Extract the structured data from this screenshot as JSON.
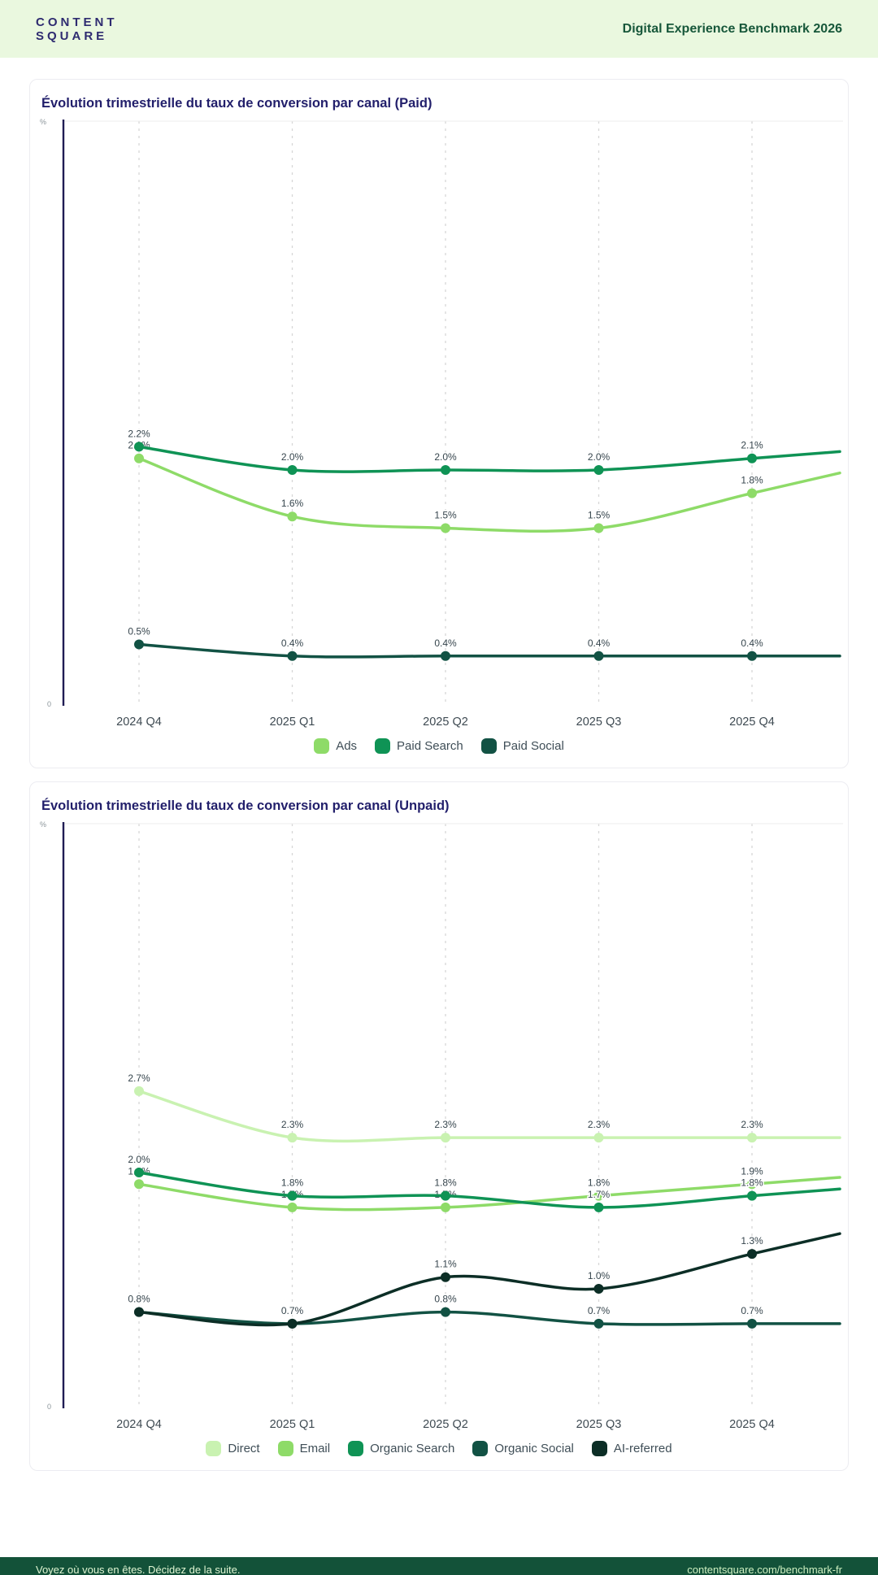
{
  "header": {
    "logo_line1": "CONTENT",
    "logo_line2": "SQUARE",
    "title": "Digital Experience Benchmark 2026"
  },
  "footer": {
    "left": "Voyez où vous en êtes. Décidez de la suite.",
    "right": "contentsquare.com/benchmark-fr"
  },
  "colors": {
    "header_bg": "#EAF8DF",
    "header_title": "#17573A",
    "logo_navy": "#2E2B70",
    "chart_title_navy": "#221F6B",
    "axis_navy": "#201C54",
    "gridline": "#D7D7D7",
    "tick_label": "#3E4A52",
    "data_label": "#36454D",
    "footer_bg": "#135239",
    "footer_text": "#DFF5D2",
    "bottom_strip_navy": "#221F6B"
  },
  "chart_data": [
    {
      "type": "line",
      "title": "Évolution trimestrielle du taux de conversion par canal (Paid)",
      "categories": [
        "2024 Q4",
        "2025 Q1",
        "2025 Q2",
        "2025 Q3",
        "2025 Q4"
      ],
      "unit": "%",
      "ylabel": "%",
      "y_origin_label": "0",
      "ylim": [
        0,
        5
      ],
      "grid": "vertical-dashed",
      "legend_position": "bottom",
      "smooth": true,
      "series": [
        {
          "name": "Ads",
          "color": "#8EDB68",
          "values": [
            2.1,
            1.6,
            1.5,
            1.5,
            1.8
          ]
        },
        {
          "name": "Paid Search",
          "color": "#0F9355",
          "values": [
            2.2,
            2.0,
            2.0,
            2.0,
            2.1
          ]
        },
        {
          "name": "Paid Social",
          "color": "#125244",
          "values": [
            0.5,
            0.4,
            0.4,
            0.4,
            0.4
          ]
        }
      ]
    },
    {
      "type": "line",
      "title": "Évolution trimestrielle du taux de conversion par canal (Unpaid)",
      "categories": [
        "2024 Q4",
        "2025 Q1",
        "2025 Q2",
        "2025 Q3",
        "2025 Q4"
      ],
      "unit": "%",
      "ylabel": "%",
      "y_origin_label": "0",
      "ylim": [
        0,
        5
      ],
      "grid": "vertical-dashed",
      "legend_position": "bottom",
      "smooth": true,
      "series": [
        {
          "name": "Direct",
          "color": "#C9F2B1",
          "values": [
            2.7,
            2.3,
            2.3,
            2.3,
            2.3
          ]
        },
        {
          "name": "Email",
          "color": "#8EDB68",
          "values": [
            1.9,
            1.7,
            1.7,
            1.8,
            1.9
          ]
        },
        {
          "name": "Organic Search",
          "color": "#0F9355",
          "values": [
            2.0,
            1.8,
            1.8,
            1.7,
            1.8
          ]
        },
        {
          "name": "Organic Social",
          "color": "#125244",
          "values": [
            0.8,
            0.7,
            0.8,
            0.7,
            0.7
          ]
        },
        {
          "name": "AI-referred",
          "color": "#0C2E26",
          "values": [
            0.8,
            0.7,
            1.1,
            1.0,
            1.3
          ]
        }
      ]
    }
  ]
}
